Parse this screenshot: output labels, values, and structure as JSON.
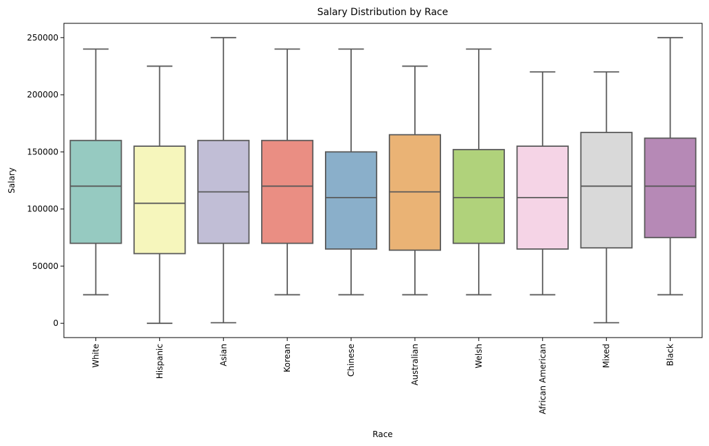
{
  "chart_data": {
    "type": "box",
    "title": "Salary Distribution by Race",
    "xlabel": "Race",
    "ylabel": "Salary",
    "ylim": [
      -12500,
      262500
    ],
    "yticks": [
      0,
      50000,
      100000,
      150000,
      200000,
      250000
    ],
    "ytick_labels": [
      "0",
      "50000",
      "100000",
      "150000",
      "200000",
      "250000"
    ],
    "grid": false,
    "categories": [
      "White",
      "Hispanic",
      "Asian",
      "Korean",
      "Chinese",
      "Australian",
      "Welsh",
      "African American",
      "Mixed",
      "Black"
    ],
    "colors": [
      "#96cac1",
      "#f6f6bc",
      "#c1bed6",
      "#ea8e83",
      "#8aafca",
      "#eab375",
      "#b0d27b",
      "#f5d4e6",
      "#d9d9d9",
      "#b689b6"
    ],
    "series": [
      {
        "min": 25000,
        "q1": 70000,
        "median": 120000,
        "q3": 160000,
        "max": 240000
      },
      {
        "min": 0,
        "q1": 61000,
        "median": 105000,
        "q3": 155000,
        "max": 225000
      },
      {
        "min": 500,
        "q1": 70000,
        "median": 115000,
        "q3": 160000,
        "max": 250000
      },
      {
        "min": 25000,
        "q1": 70000,
        "median": 120000,
        "q3": 160000,
        "max": 240000
      },
      {
        "min": 25000,
        "q1": 65000,
        "median": 110000,
        "q3": 150000,
        "max": 240000
      },
      {
        "min": 25000,
        "q1": 64000,
        "median": 115000,
        "q3": 165000,
        "max": 225000
      },
      {
        "min": 25000,
        "q1": 70000,
        "median": 110000,
        "q3": 152000,
        "max": 240000
      },
      {
        "min": 25000,
        "q1": 65000,
        "median": 110000,
        "q3": 155000,
        "max": 220000
      },
      {
        "min": 500,
        "q1": 66000,
        "median": 120000,
        "q3": 167000,
        "max": 220000
      },
      {
        "min": 25000,
        "q1": 75000,
        "median": 120000,
        "q3": 162000,
        "max": 250000
      }
    ]
  }
}
